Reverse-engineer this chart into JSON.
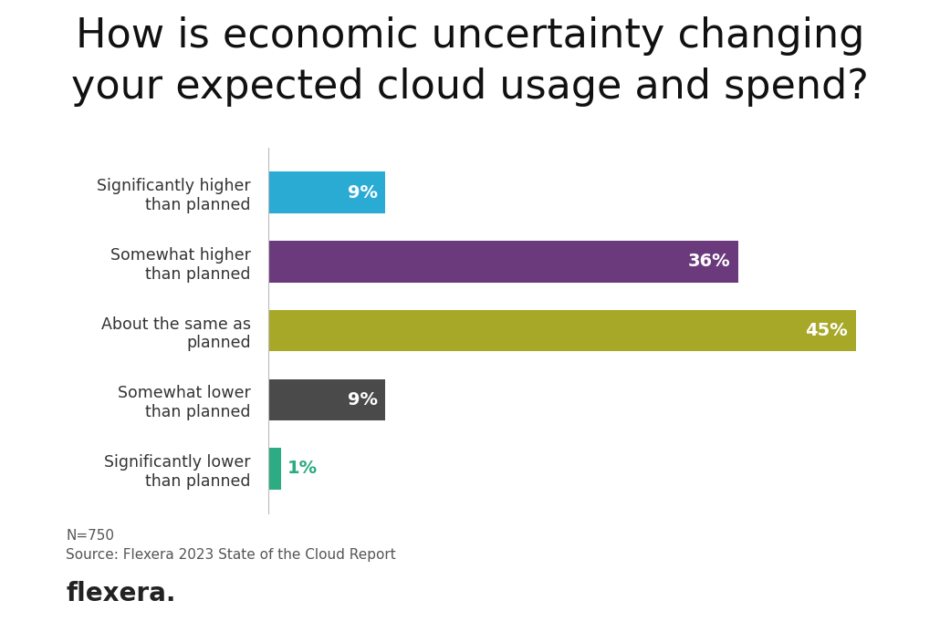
{
  "title_line1": "How is economic uncertainty changing",
  "title_line2": "your expected cloud usage and spend?",
  "categories": [
    "Significantly higher\nthan planned",
    "Somewhat higher\nthan planned",
    "About the same as\nplanned",
    "Somewhat lower\nthan planned",
    "Significantly lower\nthan planned"
  ],
  "values": [
    9,
    36,
    45,
    9,
    1
  ],
  "colors": [
    "#29ABD4",
    "#6B3A7D",
    "#A8A828",
    "#4A4A4A",
    "#2DAB82"
  ],
  "bar_height": 0.6,
  "xlim": [
    0,
    50
  ],
  "background_color": "#FFFFFF",
  "title_fontsize": 32,
  "label_fontsize": 12.5,
  "value_fontsize": 14,
  "footnote_line1": "N=750",
  "footnote_line2": "Source: Flexera 2023 State of the Cloud Report",
  "footnote_brand": "flexera.",
  "footnote_fontsize": 11,
  "brand_fontsize": 20
}
